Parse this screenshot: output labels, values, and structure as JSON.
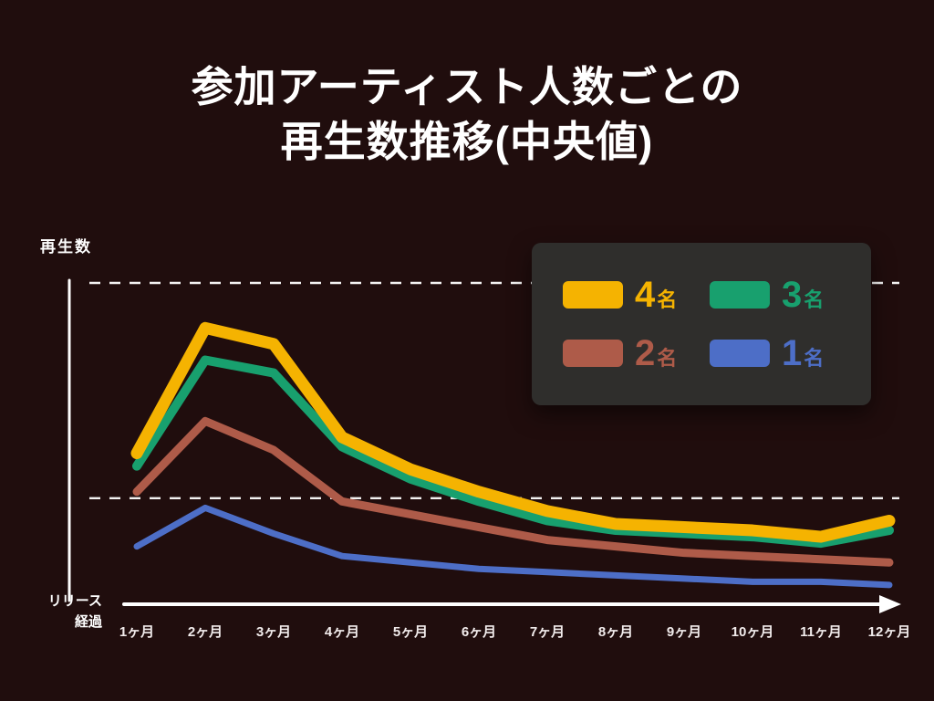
{
  "title": {
    "line1": "参加アーティスト人数ごとの",
    "line2": "再生数推移(中央値)"
  },
  "axes": {
    "y_label": "再生数",
    "x_label_line1": "リリース",
    "x_label_line2": "経過"
  },
  "legend": {
    "position": "top-right",
    "background": "#2F2E2C",
    "items": [
      {
        "key": "members-4",
        "number": "4",
        "suffix": "名",
        "color": "#F5B301"
      },
      {
        "key": "members-3",
        "number": "3",
        "suffix": "名",
        "color": "#18A06E"
      },
      {
        "key": "members-2",
        "number": "2",
        "suffix": "名",
        "color": "#AE5B49"
      },
      {
        "key": "members-1",
        "number": "1",
        "suffix": "名",
        "color": "#4D6EC7"
      }
    ]
  },
  "colors": {
    "background": "#200D0D",
    "axis": "#FFFFFF",
    "grid": "#FFFFFF"
  },
  "chart_data": {
    "type": "line",
    "title": "参加アーティスト人数ごとの再生数推移(中央値)",
    "xlabel": "リリース経過",
    "ylabel": "再生数",
    "categories": [
      "1ヶ月",
      "2ヶ月",
      "3ヶ月",
      "4ヶ月",
      "5ヶ月",
      "6ヶ月",
      "7ヶ月",
      "8ヶ月",
      "9ヶ月",
      "10ヶ月",
      "11ヶ月",
      "12ヶ月"
    ],
    "ylim": [
      0,
      100
    ],
    "y_tick_labels_shown": false,
    "grid": "dashed-horizontal",
    "gridline_values": [
      100,
      33
    ],
    "legend_position": "top-right",
    "series": [
      {
        "key": "members-4",
        "name": "4名",
        "color": "#F5B301",
        "stroke_width": 13,
        "values": [
          47,
          86,
          81,
          52,
          42,
          35,
          29,
          25,
          24,
          23,
          21,
          26
        ]
      },
      {
        "key": "members-3",
        "name": "3名",
        "color": "#18A06E",
        "stroke_width": 10,
        "values": [
          43,
          76,
          72,
          49,
          39,
          32,
          26,
          23,
          22,
          21,
          19,
          23
        ]
      },
      {
        "key": "members-2",
        "name": "2名",
        "color": "#AE5B49",
        "stroke_width": 9,
        "values": [
          35,
          57,
          48,
          32,
          28,
          24,
          20,
          18,
          16,
          15,
          14,
          13
        ]
      },
      {
        "key": "members-1",
        "name": "1名",
        "color": "#4D6EC7",
        "stroke_width": 7,
        "values": [
          18,
          30,
          22,
          15,
          13,
          11,
          10,
          9,
          8,
          7,
          7,
          6
        ]
      }
    ]
  }
}
